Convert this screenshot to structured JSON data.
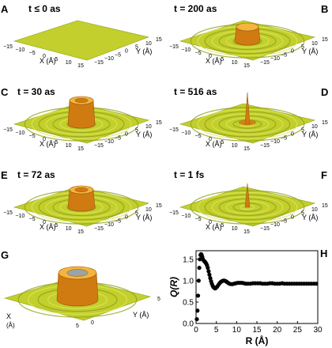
{
  "panels": [
    {
      "id": "A",
      "letter": "A",
      "time": "t ≤ 0 as",
      "kind": "flat"
    },
    {
      "id": "B",
      "letter": "B",
      "time": "t = 200 as",
      "kind": "ring"
    },
    {
      "id": "C",
      "letter": "C",
      "time": "t = 30 as",
      "kind": "cylinder-tall"
    },
    {
      "id": "D",
      "letter": "D",
      "time": "t = 516 as",
      "kind": "spike-ring"
    },
    {
      "id": "E",
      "letter": "E",
      "time": "t = 72 as",
      "kind": "cylinder"
    },
    {
      "id": "F",
      "letter": "F",
      "time": "t = 1 fs",
      "kind": "spike"
    },
    {
      "id": "G",
      "letter": "G",
      "time": "",
      "kind": "cylinder-zoom"
    }
  ],
  "surface_axes": {
    "x_label": "X (Å)",
    "y_label": "Y (Å)",
    "ticks_full": [
      "−15",
      "−10",
      "−5",
      "0",
      "5",
      "10",
      "15"
    ],
    "ticks_zoom": [
      "0",
      "5"
    ],
    "x_label_g": "X",
    "x_label_g_unit": "(Å)"
  },
  "colors": {
    "surface": "#c2cf2c",
    "surface_dark": "#8fa01a",
    "surface_light": "#dfe65a",
    "peak": "#d07a12",
    "peak_light": "#f3b53e"
  },
  "chart_data": {
    "type": "scatter",
    "panel": "H",
    "letter": "H",
    "xlabel": "R (Å)",
    "ylabel": "Q(R)",
    "xlim": [
      0,
      30
    ],
    "ylim": [
      0,
      1.7
    ],
    "xticks": [
      "0",
      "5",
      "10",
      "15",
      "20",
      "25",
      "30"
    ],
    "yticks": [
      "0.0",
      "0.5",
      "1.0",
      "1.5"
    ],
    "x": [
      0.2,
      0.35,
      0.5,
      0.65,
      0.8,
      0.95,
      1.1,
      1.25,
      1.4,
      1.55,
      1.7,
      1.9,
      2.1,
      2.3,
      2.5,
      2.7,
      2.9,
      3.1,
      3.3,
      3.5,
      3.7,
      3.9,
      4.1,
      4.3,
      4.5,
      4.7,
      4.9,
      5.2,
      5.5,
      5.8,
      6.1,
      6.4,
      6.7,
      7.0,
      7.3,
      7.6,
      7.9,
      8.2,
      8.6,
      9.0,
      9.4,
      9.8,
      10.3,
      10.8,
      11.3,
      11.8,
      12.3,
      12.8,
      13.4,
      14.0,
      14.6,
      15.2,
      15.8,
      16.4,
      17.0,
      17.6,
      18.2,
      18.8,
      19.4,
      20.0,
      20.6,
      21.2,
      21.8,
      22.4,
      23.0,
      23.6,
      24.2,
      24.8,
      25.4,
      26.0,
      26.6,
      27.2,
      27.8,
      28.4,
      29.0,
      29.6
    ],
    "y": [
      0.1,
      0.3,
      0.65,
      1.0,
      1.3,
      1.5,
      1.6,
      1.62,
      1.6,
      1.55,
      1.5,
      1.47,
      1.45,
      1.43,
      1.4,
      1.36,
      1.3,
      1.22,
      1.14,
      1.06,
      0.99,
      0.93,
      0.88,
      0.85,
      0.83,
      0.82,
      0.83,
      0.86,
      0.9,
      0.94,
      0.97,
      0.99,
      1.0,
      1.0,
      0.99,
      0.97,
      0.95,
      0.93,
      0.92,
      0.92,
      0.93,
      0.94,
      0.95,
      0.95,
      0.95,
      0.94,
      0.93,
      0.93,
      0.93,
      0.94,
      0.94,
      0.94,
      0.94,
      0.93,
      0.93,
      0.93,
      0.94,
      0.94,
      0.93,
      0.93,
      0.93,
      0.94,
      0.93,
      0.93,
      0.93,
      0.93,
      0.93,
      0.93,
      0.93,
      0.93,
      0.93,
      0.93,
      0.93,
      0.93,
      0.93,
      0.93
    ],
    "grid": false
  }
}
